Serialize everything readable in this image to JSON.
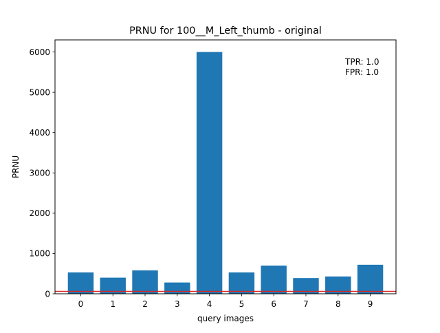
{
  "chart_data": {
    "type": "bar",
    "title": "PRNU for 100__M_Left_thumb - original",
    "xlabel": "query images",
    "ylabel": "PRNU",
    "categories": [
      "0",
      "1",
      "2",
      "3",
      "4",
      "5",
      "6",
      "7",
      "8",
      "9"
    ],
    "values": [
      530,
      400,
      580,
      280,
      6000,
      530,
      700,
      390,
      430,
      720
    ],
    "ylim": [
      0,
      6300
    ],
    "yticks": [
      0,
      1000,
      2000,
      3000,
      4000,
      5000,
      6000
    ],
    "threshold": 60,
    "annotations": [
      "TPR: 1.0",
      "FPR: 1.0"
    ],
    "bar_color": "#1f77b4",
    "threshold_color": "#d62728",
    "grid": false
  }
}
